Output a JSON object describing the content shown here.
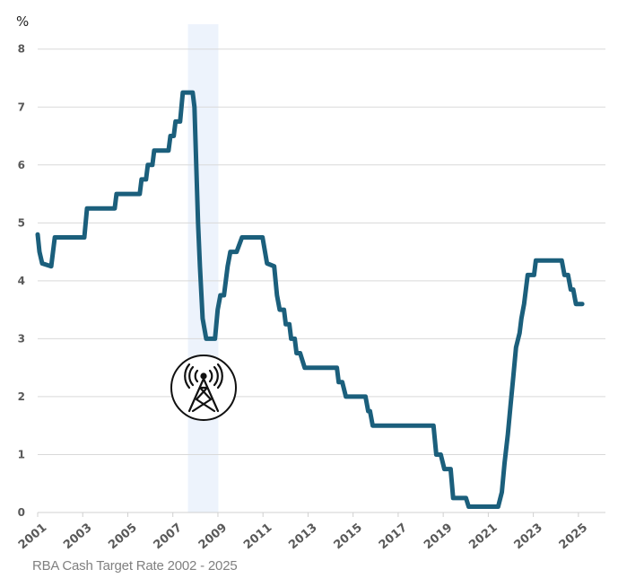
{
  "chart_data": {
    "type": "line",
    "title": "",
    "caption": "RBA Cash Target Rate 2002 - 2025",
    "ylabel": "%",
    "xlabel": "",
    "xlim": [
      2001,
      2026.2
    ],
    "ylim": [
      0,
      8.43
    ],
    "grid": true,
    "x_ticks": [
      "2001",
      "2003",
      "2005",
      "2007",
      "2009",
      "2011",
      "2013",
      "2015",
      "2017",
      "2019",
      "2021",
      "2023",
      "2025"
    ],
    "y_ticks": [
      "0",
      "1",
      "2",
      "3",
      "4",
      "5",
      "6",
      "7",
      "8"
    ],
    "shaded_region": {
      "from": 2007.67,
      "to": 2009.02,
      "color": "#edf3fc"
    },
    "annotation_icon": "cell-tower-icon",
    "colors": {
      "line": "#1b5f7c",
      "grid": "#d9d9d9",
      "axis": "#d0d0d0"
    },
    "series": [
      {
        "points": [
          [
            2001.0,
            4.8
          ],
          [
            2001.08,
            4.5
          ],
          [
            2001.2,
            4.3
          ],
          [
            2001.6,
            4.25
          ],
          [
            2001.76,
            4.75
          ],
          [
            2003.07,
            4.75
          ],
          [
            2003.19,
            5.25
          ],
          [
            2004.42,
            5.25
          ],
          [
            2004.5,
            5.5
          ],
          [
            2005.53,
            5.5
          ],
          [
            2005.61,
            5.75
          ],
          [
            2005.81,
            5.75
          ],
          [
            2005.89,
            6.0
          ],
          [
            2006.09,
            6.0
          ],
          [
            2006.17,
            6.25
          ],
          [
            2006.81,
            6.25
          ],
          [
            2006.89,
            6.5
          ],
          [
            2007.04,
            6.5
          ],
          [
            2007.12,
            6.75
          ],
          [
            2007.32,
            6.75
          ],
          [
            2007.44,
            7.25
          ],
          [
            2007.88,
            7.25
          ],
          [
            2007.96,
            7.0
          ],
          [
            2008.04,
            6.0
          ],
          [
            2008.12,
            5.0
          ],
          [
            2008.2,
            4.25
          ],
          [
            2008.32,
            3.35
          ],
          [
            2008.48,
            3.0
          ],
          [
            2008.87,
            3.0
          ],
          [
            2008.99,
            3.5
          ],
          [
            2009.11,
            3.75
          ],
          [
            2009.27,
            3.75
          ],
          [
            2009.43,
            4.25
          ],
          [
            2009.55,
            4.5
          ],
          [
            2009.83,
            4.5
          ],
          [
            2010.07,
            4.75
          ],
          [
            2010.98,
            4.75
          ],
          [
            2011.18,
            4.3
          ],
          [
            2011.5,
            4.25
          ],
          [
            2011.62,
            3.75
          ],
          [
            2011.74,
            3.5
          ],
          [
            2011.93,
            3.5
          ],
          [
            2012.01,
            3.25
          ],
          [
            2012.17,
            3.25
          ],
          [
            2012.25,
            3.0
          ],
          [
            2012.41,
            3.0
          ],
          [
            2012.49,
            2.75
          ],
          [
            2012.65,
            2.75
          ],
          [
            2012.85,
            2.5
          ],
          [
            2014.28,
            2.5
          ],
          [
            2014.36,
            2.25
          ],
          [
            2014.52,
            2.25
          ],
          [
            2014.68,
            2.0
          ],
          [
            2015.55,
            2.0
          ],
          [
            2015.67,
            1.75
          ],
          [
            2015.75,
            1.75
          ],
          [
            2015.87,
            1.5
          ],
          [
            2018.57,
            1.5
          ],
          [
            2018.69,
            1.0
          ],
          [
            2018.89,
            1.0
          ],
          [
            2019.05,
            0.75
          ],
          [
            2019.33,
            0.75
          ],
          [
            2019.44,
            0.25
          ],
          [
            2020.01,
            0.25
          ],
          [
            2020.13,
            0.1
          ],
          [
            2021.44,
            0.1
          ],
          [
            2021.6,
            0.35
          ],
          [
            2021.72,
            0.85
          ],
          [
            2021.87,
            1.35
          ],
          [
            2021.99,
            1.85
          ],
          [
            2022.11,
            2.35
          ],
          [
            2022.23,
            2.85
          ],
          [
            2022.39,
            3.1
          ],
          [
            2022.47,
            3.35
          ],
          [
            2022.59,
            3.6
          ],
          [
            2022.75,
            4.1
          ],
          [
            2023.03,
            4.1
          ],
          [
            2023.11,
            4.35
          ],
          [
            2024.26,
            4.35
          ],
          [
            2024.38,
            4.1
          ],
          [
            2024.54,
            4.1
          ],
          [
            2024.66,
            3.85
          ],
          [
            2024.77,
            3.85
          ],
          [
            2024.89,
            3.6
          ],
          [
            2025.17,
            3.6
          ]
        ]
      }
    ]
  }
}
